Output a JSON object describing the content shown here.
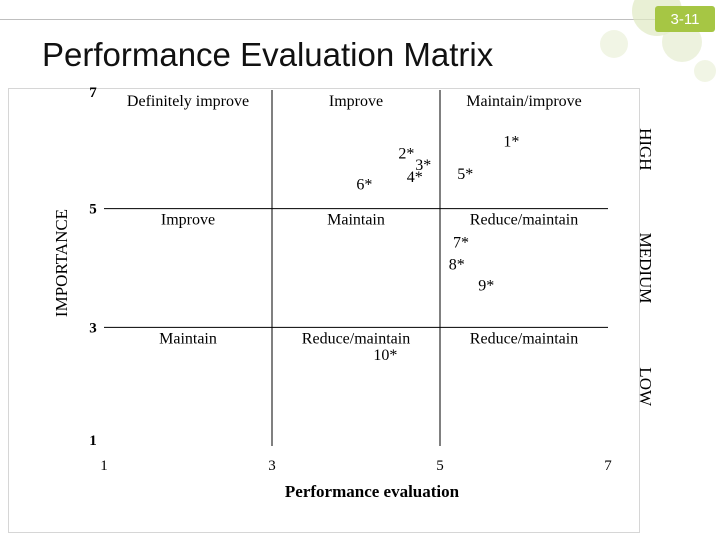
{
  "page_number": "3-11",
  "title": "Performance Evaluation Matrix",
  "colors": {
    "accent": "#a6c644",
    "deco_light": "#dfe9c3",
    "grid_line": "#000000"
  },
  "chart_data": {
    "type": "scatter",
    "title": "Performance Evaluation Matrix",
    "xlabel": "Performance evaluation",
    "ylabel": "IMPORTANCE",
    "xlim": [
      1,
      7
    ],
    "ylim": [
      1,
      7
    ],
    "x_ticks": [
      "1",
      "3",
      "5",
      "7"
    ],
    "y_ticks": [
      "1",
      "3",
      "5",
      "7"
    ],
    "x_divisions": [
      1,
      3,
      5,
      7
    ],
    "y_divisions": [
      1,
      3,
      5,
      7
    ],
    "importance_bands": [
      {
        "label": "HIGH",
        "from": 5,
        "to": 7
      },
      {
        "label": "MEDIUM",
        "from": 3,
        "to": 5
      },
      {
        "label": "LOW",
        "from": 1,
        "to": 3
      }
    ],
    "cell_labels": [
      {
        "text": "Definitely improve",
        "x": 2,
        "y": 7
      },
      {
        "text": "Improve",
        "x": 4,
        "y": 7
      },
      {
        "text": "Maintain/improve",
        "x": 6,
        "y": 7
      },
      {
        "text": "Improve",
        "x": 2,
        "y": 5
      },
      {
        "text": "Maintain",
        "x": 4,
        "y": 5
      },
      {
        "text": "Reduce/maintain",
        "x": 6,
        "y": 5
      },
      {
        "text": "Maintain",
        "x": 2,
        "y": 3
      },
      {
        "text": "Reduce/maintain",
        "x": 4,
        "y": 3
      },
      {
        "text": "Reduce/maintain",
        "x": 6,
        "y": 3
      }
    ],
    "points": [
      {
        "label": "1*",
        "x": 5.85,
        "y": 6.15
      },
      {
        "label": "2*",
        "x": 4.6,
        "y": 5.95
      },
      {
        "label": "3*",
        "x": 4.8,
        "y": 5.75
      },
      {
        "label": "4*",
        "x": 4.7,
        "y": 5.55
      },
      {
        "label": "5*",
        "x": 5.3,
        "y": 5.6
      },
      {
        "label": "6*",
        "x": 4.1,
        "y": 5.42
      },
      {
        "label": "7*",
        "x": 5.25,
        "y": 4.45
      },
      {
        "label": "8*",
        "x": 5.2,
        "y": 4.08
      },
      {
        "label": "9*",
        "x": 5.55,
        "y": 3.72
      },
      {
        "label": "10*",
        "x": 4.35,
        "y": 2.55
      }
    ]
  }
}
